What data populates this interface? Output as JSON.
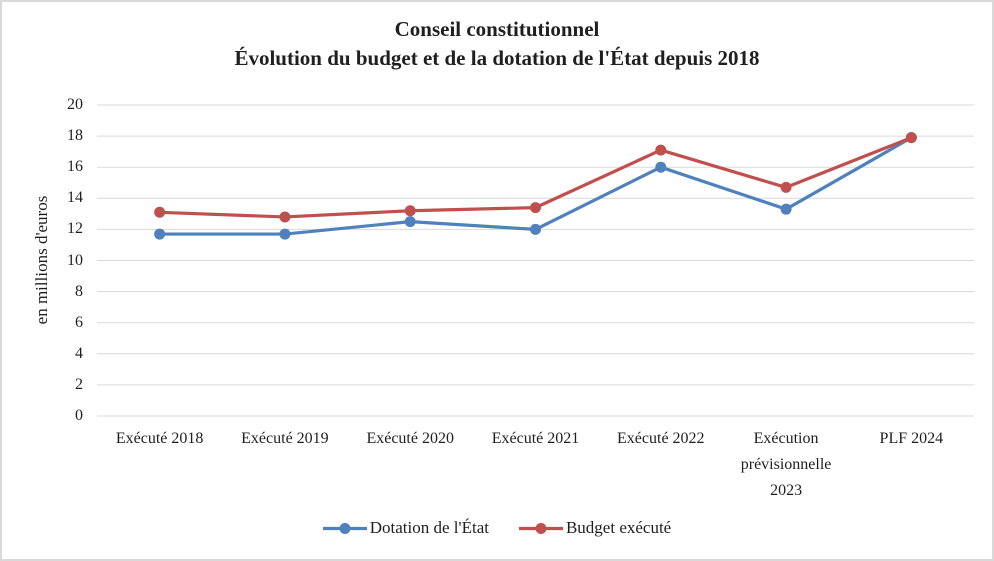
{
  "chart_data": {
    "type": "line",
    "title_lines": [
      "Conseil constitutionnel",
      "Évolution du budget et de la dotation de l'État depuis 2018"
    ],
    "ylabel": "en millions d'euros",
    "xlabel": "",
    "categories": [
      "Exécuté 2018",
      "Exécuté 2019",
      "Exécuté 2020",
      "Exécuté 2021",
      "Exécuté 2022",
      "Exécution prévisionnelle 2023",
      "PLF 2024"
    ],
    "series": [
      {
        "name": "Dotation de l'État",
        "color": "#4F81BD",
        "values": [
          11.7,
          11.7,
          12.5,
          12.0,
          16.0,
          13.3,
          17.9
        ]
      },
      {
        "name": "Budget exécuté",
        "color": "#C0504D",
        "values": [
          13.1,
          12.8,
          13.2,
          13.4,
          17.1,
          14.7,
          17.9
        ]
      }
    ],
    "ylim": [
      0,
      20
    ],
    "y_ticks": [
      0,
      2,
      4,
      6,
      8,
      10,
      12,
      14,
      16,
      18,
      20
    ],
    "grid": true,
    "legend_position": "bottom",
    "colors": {
      "gridline": "#D9D9D9",
      "border": "#D9D9D9",
      "text": "#1f1f1f"
    }
  }
}
